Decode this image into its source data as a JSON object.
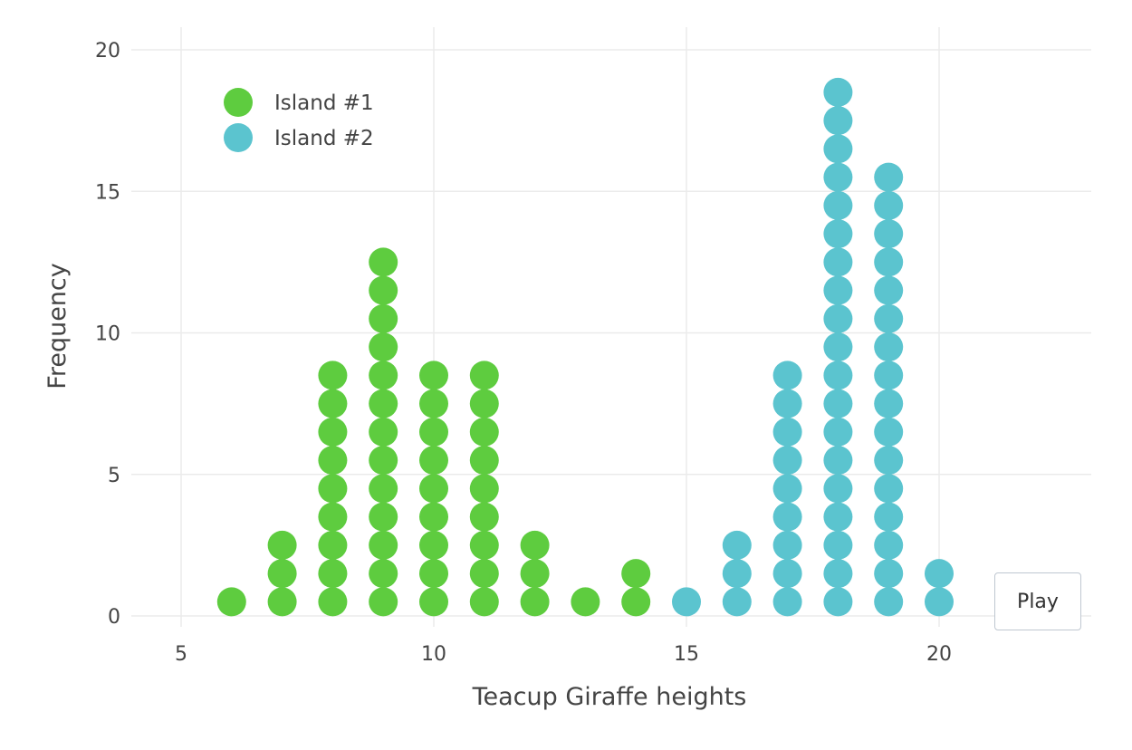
{
  "chart_data": {
    "type": "scatter",
    "subtype": "dot-plot",
    "title": "",
    "xlabel": "Teacup Giraffe heights",
    "ylabel": "Frequency",
    "xlim": [
      4,
      23
    ],
    "ylim": [
      -0.8,
      20.8
    ],
    "x_ticks": [
      5,
      10,
      15,
      20
    ],
    "y_ticks": [
      0,
      5,
      10,
      15,
      20
    ],
    "grid": true,
    "legend_placement": "top-left",
    "series": [
      {
        "name": "Island #1",
        "color": "#5ecc3f",
        "counts": [
          {
            "x": 6,
            "count": 1
          },
          {
            "x": 7,
            "count": 3
          },
          {
            "x": 8,
            "count": 9
          },
          {
            "x": 9,
            "count": 13
          },
          {
            "x": 10,
            "count": 9
          },
          {
            "x": 11,
            "count": 9
          },
          {
            "x": 12,
            "count": 3
          },
          {
            "x": 13,
            "count": 1
          },
          {
            "x": 14,
            "count": 2
          }
        ]
      },
      {
        "name": "Island #2",
        "color": "#5bc4cf",
        "counts": [
          {
            "x": 15,
            "count": 1
          },
          {
            "x": 16,
            "count": 3
          },
          {
            "x": 17,
            "count": 9
          },
          {
            "x": 18,
            "count": 19
          },
          {
            "x": 19,
            "count": 16
          },
          {
            "x": 20,
            "count": 2
          }
        ]
      }
    ]
  },
  "controls": {
    "play_label": "Play"
  }
}
